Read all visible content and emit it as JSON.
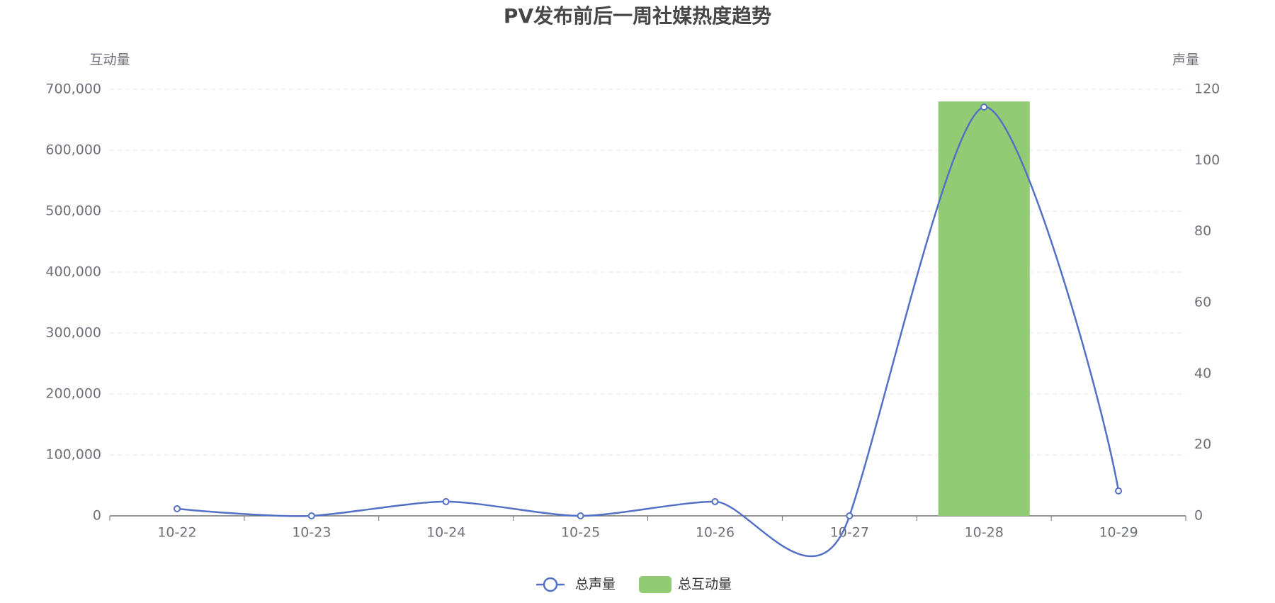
{
  "chart_data": {
    "type": "bar-line",
    "title": "PV发布前后一周社媒热度趋势",
    "y_label": "互动量",
    "y2_label": "声量",
    "categories": [
      "10-22",
      "10-23",
      "10-24",
      "10-25",
      "10-26",
      "10-27",
      "10-28",
      "10-29"
    ],
    "series": [
      {
        "name": "总声量",
        "type": "line",
        "axis": "y2",
        "smooth": true,
        "color": "#5470c6",
        "values": [
          2,
          0,
          4,
          0,
          4,
          0,
          115,
          7
        ]
      },
      {
        "name": "总互动量",
        "type": "bar",
        "axis": "y",
        "color": "#91cc75",
        "values": [
          0,
          0,
          0,
          0,
          0,
          0,
          680000,
          0
        ]
      }
    ],
    "ylim": [
      0,
      700000
    ],
    "yticks": [
      0,
      {
        "value": 100000,
        "label": "100,000"
      },
      {
        "value": 200000,
        "label": "200,000"
      },
      {
        "value": 300000,
        "label": "300,000"
      },
      {
        "value": 400000,
        "label": "400,000"
      },
      {
        "value": 500000,
        "label": "500,000"
      },
      {
        "value": 600000,
        "label": "600,000"
      },
      {
        "value": 700000,
        "label": "700,000"
      }
    ],
    "y2lim": [
      0,
      120
    ],
    "y2ticks": [
      0,
      20,
      40,
      60,
      80,
      100,
      120
    ],
    "grid": true,
    "legend": "bottom"
  }
}
